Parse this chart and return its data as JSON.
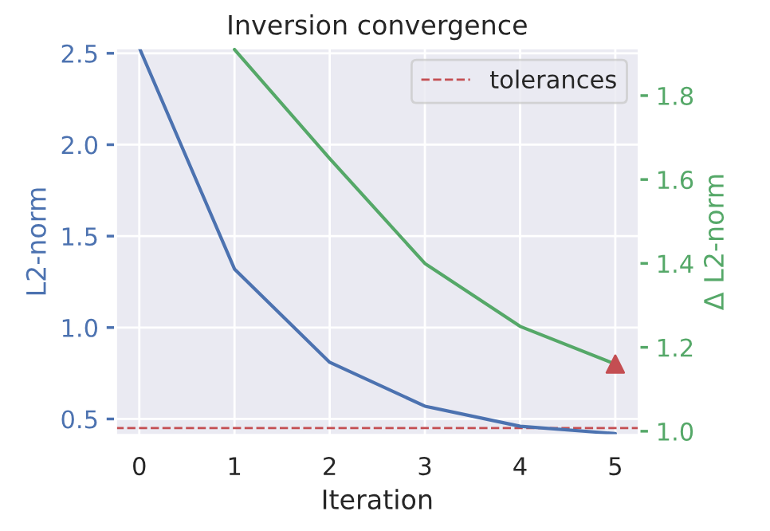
{
  "chart_data": {
    "type": "line",
    "title": "Inversion convergence",
    "xlabel": "Iteration",
    "ylabel": "L2-norm",
    "y2label": "Δ L2-norm",
    "x": [
      0,
      1,
      2,
      3,
      4,
      5
    ],
    "series": [
      {
        "color": "#4c72b0",
        "values": [
          2.53,
          1.32,
          0.81,
          0.57,
          0.46,
          0.42
        ]
      },
      {
        "color": "#55a868",
        "axis": "y2",
        "values": [
          null,
          1.91,
          1.65,
          1.4,
          1.25,
          1.16
        ]
      },
      {
        "type": "scatter",
        "marker": "triangle",
        "color": "#c44e52",
        "axis": "y2",
        "x": [
          5
        ],
        "values": [
          1.16
        ]
      }
    ],
    "ref_lines": [
      {
        "axis": "y",
        "value": 0.45,
        "label": "tolerances",
        "color": "#c44e52",
        "line_style": "dashed"
      }
    ],
    "xlim": [
      -0.25,
      5.25
    ],
    "xticks": [
      0,
      1,
      2,
      3,
      4,
      5
    ],
    "ylim": [
      0.41,
      2.53
    ],
    "yticks": [
      0.5,
      {
        "value": 1,
        "label": "1.0"
      },
      1.5,
      {
        "value": 2,
        "label": "2.0"
      },
      2.5
    ],
    "y2lim": [
      0.99,
      1.914
    ],
    "y2ticks": [
      {
        "value": 1,
        "label": "1.0"
      },
      1.2,
      1.4,
      1.6,
      1.8
    ],
    "grid": true,
    "legend": "top right"
  }
}
